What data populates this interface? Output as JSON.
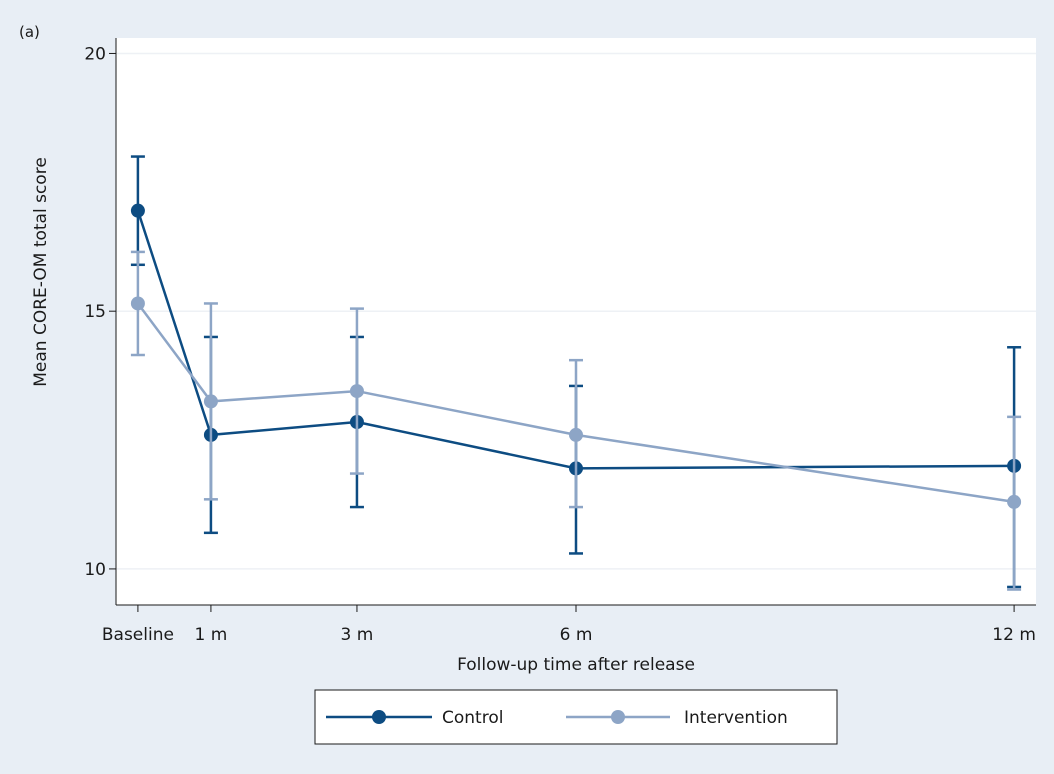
{
  "panel_label": "(a)",
  "colors": {
    "control": "#0d4c82",
    "intervention": "#8da5c6",
    "background": "#e8eef5",
    "plot_bg": "#ffffff",
    "grid": "#eef1f5",
    "axis": "#1a1a1a"
  },
  "chart_data": {
    "type": "line",
    "title": "",
    "xlabel": "Follow-up time after release",
    "ylabel": "Mean CORE-OM total score",
    "x_ticks": [
      {
        "x": 0,
        "label": "Baseline"
      },
      {
        "x": 1,
        "label": "1 m"
      },
      {
        "x": 3,
        "label": "3 m"
      },
      {
        "x": 6,
        "label": "6 m"
      },
      {
        "x": 12,
        "label": "12 m"
      }
    ],
    "x_range": [
      -0.3,
      12.3
    ],
    "y_ticks": [
      10,
      15,
      20
    ],
    "ylim": [
      9.3,
      20.3
    ],
    "grid": true,
    "legend_position": "bottom",
    "error_bars": true,
    "series": [
      {
        "name": "Control",
        "color": "#0d4c82",
        "points": [
          {
            "x": 0,
            "y": 16.95,
            "lower": 15.9,
            "upper": 18.0
          },
          {
            "x": 1,
            "y": 12.6,
            "lower": 10.7,
            "upper": 14.5
          },
          {
            "x": 3,
            "y": 12.85,
            "lower": 11.2,
            "upper": 14.5
          },
          {
            "x": 6,
            "y": 11.95,
            "lower": 10.3,
            "upper": 13.55
          },
          {
            "x": 12,
            "y": 12.0,
            "lower": 9.65,
            "upper": 14.3
          }
        ]
      },
      {
        "name": "Intervention",
        "color": "#8da5c6",
        "points": [
          {
            "x": 0,
            "y": 15.15,
            "lower": 14.15,
            "upper": 16.15
          },
          {
            "x": 1,
            "y": 13.25,
            "lower": 11.35,
            "upper": 15.15
          },
          {
            "x": 3,
            "y": 13.45,
            "lower": 11.85,
            "upper": 15.05
          },
          {
            "x": 6,
            "y": 12.6,
            "lower": 11.2,
            "upper": 14.05
          },
          {
            "x": 12,
            "y": 11.3,
            "lower": 9.6,
            "upper": 12.95
          }
        ]
      }
    ]
  }
}
